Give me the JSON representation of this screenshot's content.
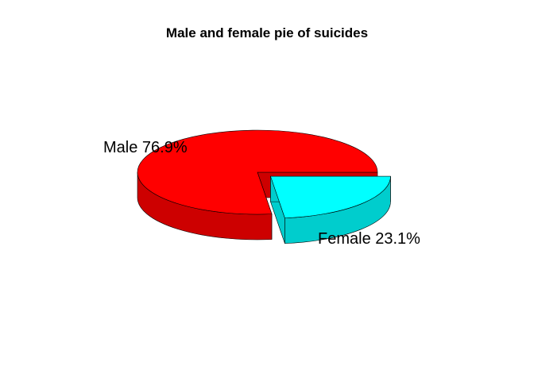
{
  "chart_data": {
    "type": "pie",
    "title": "Male and female pie of suicides",
    "slices": [
      {
        "name": "Male",
        "value": 76.9,
        "label": "Male 76.9%",
        "color": "#ff0000",
        "side_color": "#cd0000"
      },
      {
        "name": "Female",
        "value": 23.1,
        "label": "Female 23.1%",
        "color": "#00ffff",
        "side_color": "#00cdcd"
      }
    ],
    "exploded": [
      "Female"
    ],
    "style": "3d"
  }
}
